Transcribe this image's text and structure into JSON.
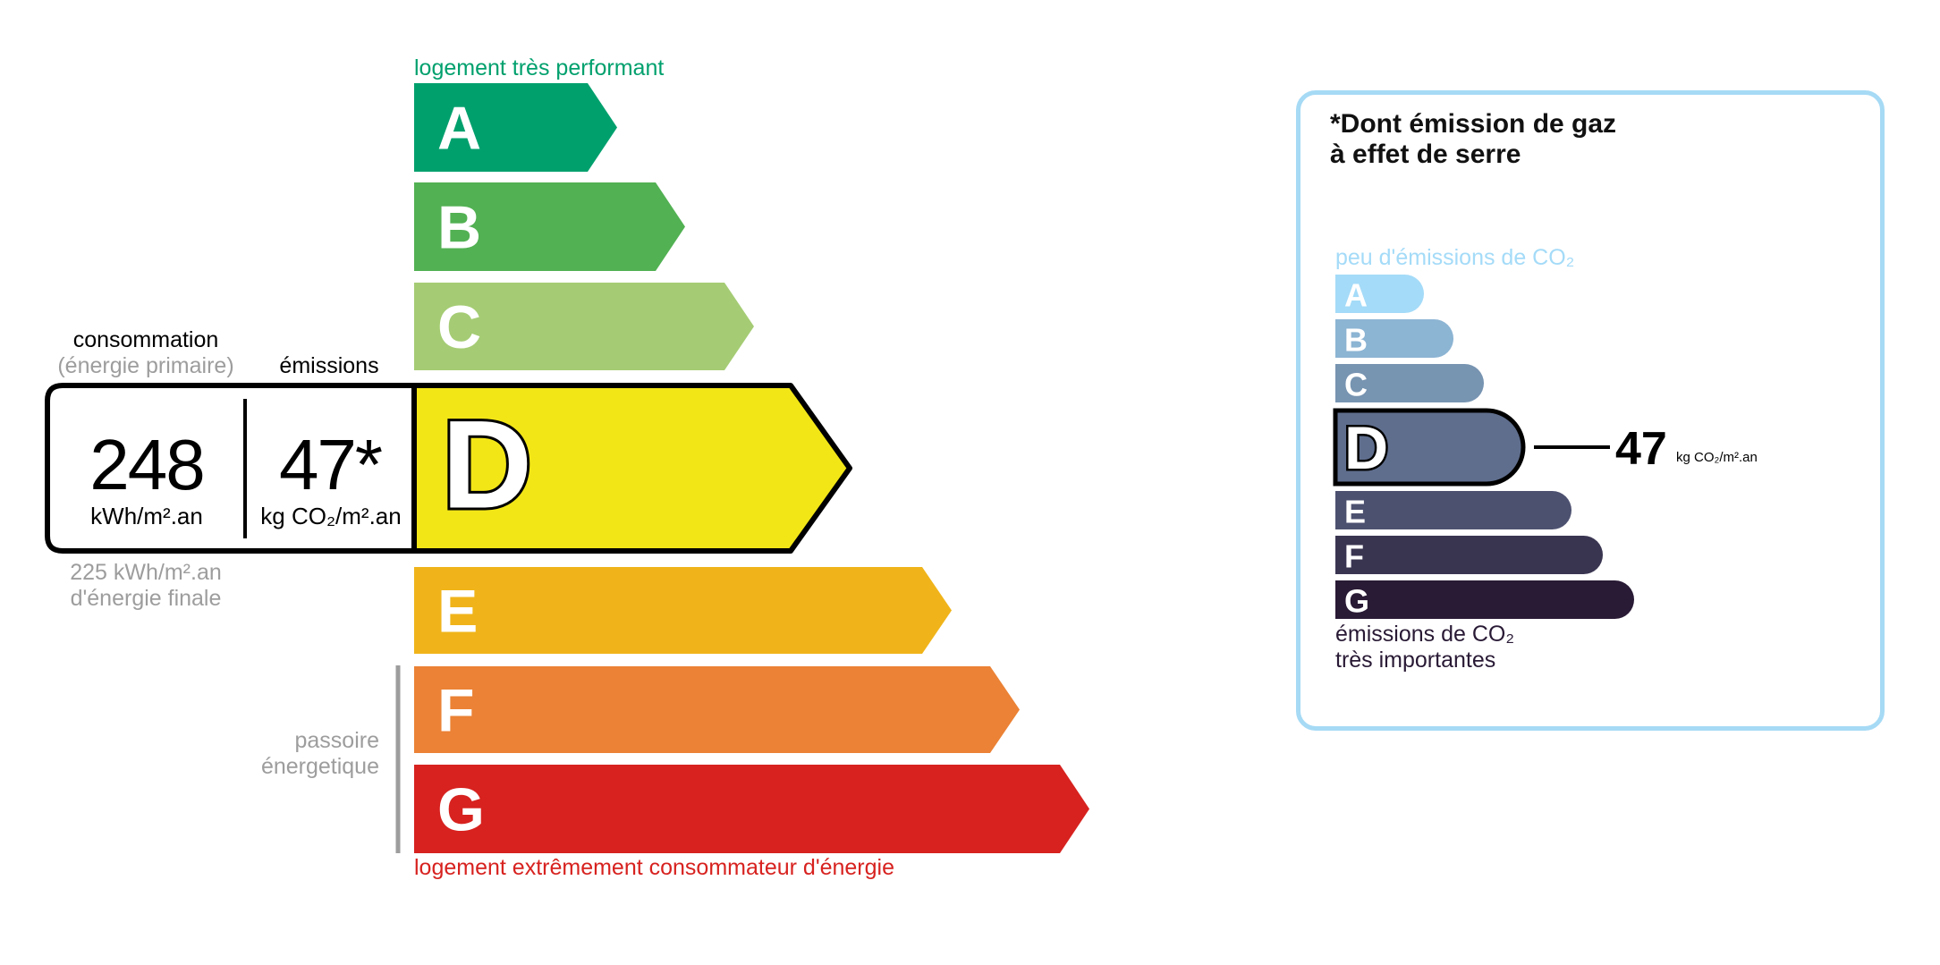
{
  "energy": {
    "top_label": "logement très performant",
    "bottom_label": "logement extrêmement consommateur d'énergie",
    "classes": [
      {
        "letter": "A",
        "color": "#00a06d"
      },
      {
        "letter": "B",
        "color": "#52b153"
      },
      {
        "letter": "C",
        "color": "#a5cc74"
      },
      {
        "letter": "D",
        "color": "#f2e617"
      },
      {
        "letter": "E",
        "color": "#f0b41a"
      },
      {
        "letter": "F",
        "color": "#eb8235"
      },
      {
        "letter": "G",
        "color": "#d7221f"
      }
    ],
    "current_class": "D",
    "consumption_label": "consommation",
    "consumption_sublabel": "(énergie primaire)",
    "emissions_label": "émissions",
    "consumption_value": "248",
    "consumption_unit": "kWh/m².an",
    "emissions_value": "47*",
    "emissions_unit": "kg CO₂/m².an",
    "final_energy_value": "225 kWh/m².an",
    "final_energy_label": "d'énergie finale",
    "passoire_line1": "passoire",
    "passoire_line2": "énergetique"
  },
  "ges": {
    "title_line1": "*Dont émission de gaz",
    "title_line2": "à effet de serre",
    "top_label": "peu d'émissions de CO₂",
    "bottom_line1": "émissions de CO₂",
    "bottom_line2": "très importantes",
    "classes": [
      {
        "letter": "A",
        "color": "#a4dbf8"
      },
      {
        "letter": "B",
        "color": "#8cb4d3"
      },
      {
        "letter": "C",
        "color": "#7794b1"
      },
      {
        "letter": "D",
        "color": "#5f6e8d"
      },
      {
        "letter": "E",
        "color": "#4d5170"
      },
      {
        "letter": "F",
        "color": "#393551"
      },
      {
        "letter": "G",
        "color": "#291a35"
      }
    ],
    "current_class": "D",
    "value": "47",
    "unit": "kg CO₂/m².an",
    "border_color": "#a6daf5"
  }
}
